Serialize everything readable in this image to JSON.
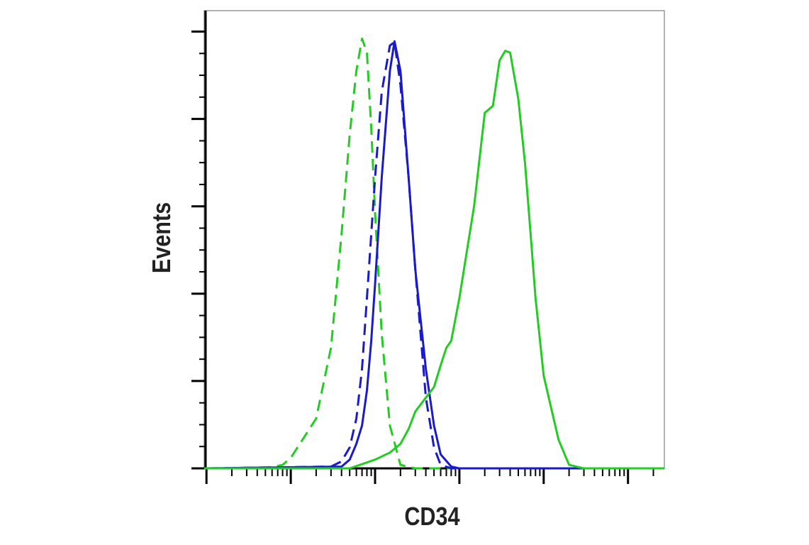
{
  "chart_data": {
    "type": "line",
    "xlabel": "CD34",
    "ylabel": "Events",
    "xscale": "log",
    "xlim": [
      0.94,
      270000
    ],
    "ylim": [
      0,
      524
    ],
    "xticks": [
      1,
      10,
      100,
      1000,
      10000,
      100000
    ],
    "xminorticks": [
      2,
      3,
      4,
      5,
      6,
      7,
      8,
      9,
      20,
      30,
      40,
      50,
      60,
      70,
      80,
      90,
      200,
      300,
      400,
      500,
      600,
      700,
      800,
      900,
      2000,
      3000,
      4000,
      5000,
      6000,
      7000,
      8000,
      9000,
      20000,
      30000,
      40000,
      50000,
      60000,
      70000,
      80000,
      90000,
      200000
    ],
    "yticks": [
      0,
      100,
      200,
      300,
      400,
      500
    ],
    "yminorticks": [
      25,
      50,
      75,
      125,
      150,
      175,
      225,
      250,
      275,
      325,
      350,
      375,
      425,
      450,
      475
    ],
    "series": [
      {
        "color": "#22cc22",
        "dash": true,
        "x": [
          1,
          5,
          8,
          10,
          20,
          30,
          40,
          50,
          60,
          70,
          80,
          90,
          100,
          120,
          150,
          200,
          300,
          100000
        ],
        "values": [
          0,
          0,
          4,
          12,
          57,
          138,
          268,
          382,
          455,
          492,
          476,
          390,
          293,
          154,
          49,
          4,
          0,
          0
        ]
      },
      {
        "color": "#1a1acc",
        "dash": true,
        "x": [
          1,
          30,
          40,
          50,
          60,
          70,
          80,
          90,
          100,
          120,
          150,
          170,
          200,
          250,
          300,
          400,
          500,
          600,
          800,
          100000
        ],
        "values": [
          0,
          2,
          8,
          24,
          57,
          114,
          195,
          268,
          333,
          431,
          484,
          488,
          439,
          333,
          228,
          81,
          24,
          4,
          0,
          0
        ]
      },
      {
        "color": "#1a1acc",
        "dash": false,
        "x": [
          1,
          40,
          50,
          60,
          70,
          80,
          90,
          100,
          120,
          150,
          170,
          200,
          250,
          300,
          400,
          500,
          600,
          800,
          1000,
          100000
        ],
        "values": [
          0,
          2,
          10,
          28,
          49,
          89,
          146,
          211,
          333,
          455,
          489,
          455,
          333,
          228,
          114,
          49,
          16,
          2,
          0,
          0
        ]
      },
      {
        "color": "#22cc22",
        "dash": false,
        "x": [
          0.94,
          50,
          100,
          150,
          200,
          250,
          300,
          400,
          500,
          600,
          700,
          800,
          1000,
          1500,
          2000,
          2500,
          3000,
          3500,
          4000,
          5000,
          6000,
          7000,
          8000,
          10000,
          15000,
          20000,
          30000,
          270000
        ],
        "values": [
          0,
          0,
          10,
          18,
          28,
          45,
          65,
          81,
          93,
          118,
          138,
          146,
          195,
          301,
          407,
          415,
          467,
          478,
          476,
          423,
          350,
          268,
          195,
          106,
          33,
          4,
          0,
          0
        ]
      }
    ]
  }
}
